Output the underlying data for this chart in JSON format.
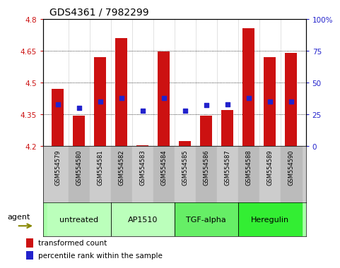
{
  "title": "GDS4361 / 7982299",
  "samples": [
    "GSM554579",
    "GSM554580",
    "GSM554581",
    "GSM554582",
    "GSM554583",
    "GSM554584",
    "GSM554585",
    "GSM554586",
    "GSM554587",
    "GSM554588",
    "GSM554589",
    "GSM554590"
  ],
  "bar_values": [
    4.47,
    4.345,
    4.62,
    4.71,
    4.205,
    4.645,
    4.225,
    4.345,
    4.37,
    4.755,
    4.62,
    4.64
  ],
  "percentile_values": [
    33,
    30,
    35,
    38,
    28,
    38,
    28,
    32,
    33,
    38,
    35,
    35
  ],
  "ymin": 4.2,
  "ymax": 4.8,
  "yticks": [
    4.2,
    4.35,
    4.5,
    4.65,
    4.8
  ],
  "ytick_labels": [
    "4.2",
    "4.35",
    "4.5",
    "4.65",
    "4.8"
  ],
  "right_yticks": [
    0,
    25,
    50,
    75,
    100
  ],
  "right_ytick_labels": [
    "0",
    "25",
    "50",
    "75",
    "100%"
  ],
  "bar_color": "#cc1111",
  "dot_color": "#2222cc",
  "agents": [
    {
      "label": "untreated",
      "start": 0,
      "end": 2
    },
    {
      "label": "AP1510",
      "start": 3,
      "end": 5
    },
    {
      "label": "TGF-alpha",
      "start": 6,
      "end": 8
    },
    {
      "label": "Heregulin",
      "start": 9,
      "end": 11
    }
  ],
  "agent_colors": [
    "#bbffbb",
    "#bbffbb",
    "#66ee66",
    "#33ee33"
  ],
  "agent_label": "agent",
  "legend_bar_label": "transformed count",
  "legend_dot_label": "percentile rank within the sample",
  "title_fontsize": 10,
  "tick_fontsize": 7.5,
  "sample_fontsize": 6,
  "agent_fontsize": 8,
  "legend_fontsize": 7.5,
  "sample_bg_even": "#cccccc",
  "sample_bg_odd": "#bbbbbb",
  "plot_bg": "#ffffff"
}
